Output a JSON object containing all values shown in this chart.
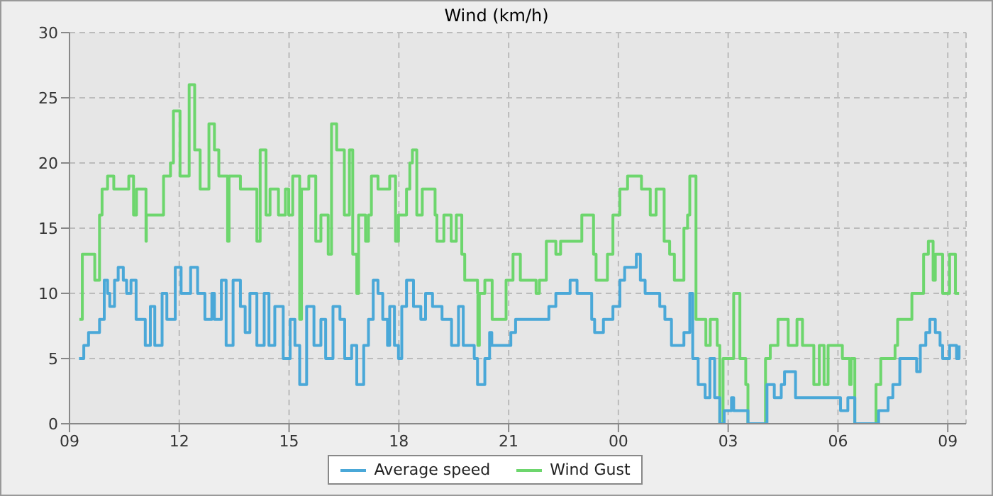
{
  "chart_data": {
    "type": "step",
    "title": "Wind (km/h)",
    "xlim": [
      9,
      33.5
    ],
    "xticks": [
      {
        "value": 9,
        "label": "09"
      },
      {
        "value": 12,
        "label": "12"
      },
      {
        "value": 15,
        "label": "15"
      },
      {
        "value": 18,
        "label": "18"
      },
      {
        "value": 21,
        "label": "21"
      },
      {
        "value": 24,
        "label": "00"
      },
      {
        "value": 27,
        "label": "03"
      },
      {
        "value": 30,
        "label": "06"
      },
      {
        "value": 33,
        "label": "09"
      }
    ],
    "ylim": [
      0,
      30
    ],
    "yticks": [
      0,
      5,
      10,
      15,
      20,
      25,
      30
    ],
    "grid": true,
    "legend": "bottom",
    "series": [
      {
        "name": "Wind Gust",
        "color": "#6dd66d",
        "x": [
          9.27,
          9.35,
          9.69,
          9.82,
          9.89,
          10.04,
          10.21,
          10.62,
          10.75,
          10.83,
          11.09,
          11.1,
          11.57,
          11.76,
          11.84,
          12.02,
          12.27,
          12.42,
          12.57,
          12.81,
          12.96,
          13.08,
          13.32,
          13.36,
          13.67,
          14.12,
          14.21,
          14.37,
          14.48,
          14.71,
          14.9,
          14.99,
          15.1,
          15.29,
          15.34,
          15.54,
          15.73,
          15.87,
          16.07,
          16.16,
          16.3,
          16.51,
          16.65,
          16.74,
          16.85,
          16.9,
          17.09,
          17.17,
          17.25,
          17.43,
          17.75,
          17.91,
          17.99,
          18.21,
          18.3,
          18.37,
          18.49,
          18.64,
          18.99,
          19.04,
          19.23,
          19.43,
          19.57,
          19.72,
          19.8,
          20.15,
          20.16,
          20.2,
          20.35,
          20.55,
          20.93,
          21.12,
          21.32,
          21.75,
          21.84,
          22.03,
          22.29,
          22.42,
          23,
          23.32,
          23.39,
          23.7,
          23.85,
          24.04,
          24.25,
          24.63,
          24.87,
          25.03,
          25.25,
          25.4,
          25.53,
          25.79,
          25.89,
          25.95,
          26.12,
          26.39,
          26.51,
          26.7,
          26.77,
          26.86,
          27.15,
          27.32,
          27.48,
          27.54,
          28.02,
          28.15,
          28.36,
          28.64,
          28.88,
          29.03,
          29.34,
          29.49,
          29.62,
          29.73,
          30.12,
          30.32,
          30.36,
          30.46,
          31.04,
          31.17,
          31.56,
          31.63,
          32.02,
          32.34,
          32.47,
          32.6,
          32.66,
          32.86,
          33.05,
          33.21,
          33.31
        ],
        "values": [
          8,
          13,
          11,
          16,
          18,
          19,
          18,
          19,
          16,
          18,
          14,
          16,
          19,
          20,
          24,
          19,
          26,
          21,
          18,
          23,
          21,
          19,
          14,
          19,
          18,
          14,
          21,
          16,
          18,
          16,
          18,
          16,
          19,
          8,
          18,
          19,
          14,
          16,
          13,
          23,
          21,
          16,
          21,
          13,
          10,
          16,
          14,
          16,
          19,
          18,
          19,
          14,
          16,
          18,
          20,
          21,
          16,
          18,
          16,
          14,
          16,
          14,
          16,
          13,
          11,
          10,
          6,
          10,
          11,
          8,
          11,
          13,
          11,
          10,
          11,
          14,
          13,
          14,
          16,
          13,
          11,
          13,
          16,
          18,
          19,
          18,
          16,
          18,
          14,
          13,
          11,
          15,
          16,
          19,
          8,
          6,
          8,
          6,
          0,
          5,
          10,
          5,
          3,
          0,
          5,
          6,
          8,
          6,
          8,
          6,
          3,
          6,
          3,
          6,
          5,
          3,
          5,
          0,
          3,
          5,
          6,
          8,
          10,
          13,
          14,
          11,
          13,
          10,
          13,
          10,
          10
        ]
      },
      {
        "name": "Average speed",
        "color": "#4aa8d8",
        "x": [
          9.26,
          9.39,
          9.52,
          9.82,
          9.95,
          10.04,
          10.1,
          10.23,
          10.33,
          10.47,
          10.56,
          10.68,
          10.82,
          11.07,
          11.21,
          11.33,
          11.53,
          11.66,
          11.89,
          12.05,
          12.31,
          12.5,
          12.7,
          12.89,
          12.96,
          13.15,
          13.28,
          13.47,
          13.67,
          13.8,
          13.93,
          14.12,
          14.32,
          14.45,
          14.61,
          14.84,
          15.03,
          15.16,
          15.29,
          15.48,
          15.68,
          15.87,
          16,
          16.2,
          16.39,
          16.52,
          16.71,
          16.85,
          17.04,
          17.17,
          17.3,
          17.43,
          17.56,
          17.69,
          17.75,
          17.88,
          17.99,
          18.08,
          18.21,
          18.4,
          18.6,
          18.73,
          18.92,
          19.18,
          19.44,
          19.63,
          19.76,
          20.06,
          20.15,
          20.35,
          20.48,
          20.54,
          21.06,
          21.19,
          22.1,
          22.29,
          22.68,
          22.87,
          23.27,
          23.35,
          23.59,
          23.85,
          24.04,
          24.17,
          24.49,
          24.6,
          24.73,
          25.13,
          25.27,
          25.45,
          25.79,
          25.95,
          26.03,
          26.18,
          26.37,
          26.5,
          26.63,
          26.77,
          26.89,
          27.09,
          27.15,
          27.54,
          28.06,
          28.26,
          28.45,
          28.54,
          28.84,
          30.07,
          30.27,
          30.46,
          31.11,
          31.37,
          31.5,
          31.69,
          32.15,
          32.25,
          32.4,
          32.51,
          32.66,
          32.79,
          32.86,
          33.05,
          33.24,
          33.31
        ],
        "values": [
          5,
          6,
          7,
          8,
          11,
          10,
          9,
          11,
          12,
          11,
          10,
          11,
          8,
          6,
          9,
          6,
          10,
          8,
          12,
          10,
          12,
          10,
          8,
          10,
          8,
          11,
          6,
          11,
          9,
          7,
          10,
          6,
          10,
          6,
          9,
          5,
          8,
          6,
          3,
          9,
          6,
          8,
          5,
          9,
          8,
          5,
          6,
          3,
          6,
          8,
          11,
          10,
          8,
          6,
          9,
          6,
          5,
          9,
          11,
          9,
          8,
          10,
          9,
          8,
          6,
          9,
          6,
          5,
          3,
          5,
          7,
          6,
          7,
          8,
          9,
          10,
          11,
          10,
          8,
          7,
          8,
          9,
          11,
          12,
          13,
          11,
          10,
          9,
          8,
          6,
          7,
          10,
          5,
          3,
          2,
          5,
          2,
          0,
          1,
          2,
          1,
          0,
          3,
          2,
          3,
          4,
          2,
          1,
          2,
          0,
          1,
          2,
          3,
          5,
          4,
          6,
          7,
          8,
          7,
          6,
          5,
          6,
          5,
          6
        ]
      }
    ]
  }
}
